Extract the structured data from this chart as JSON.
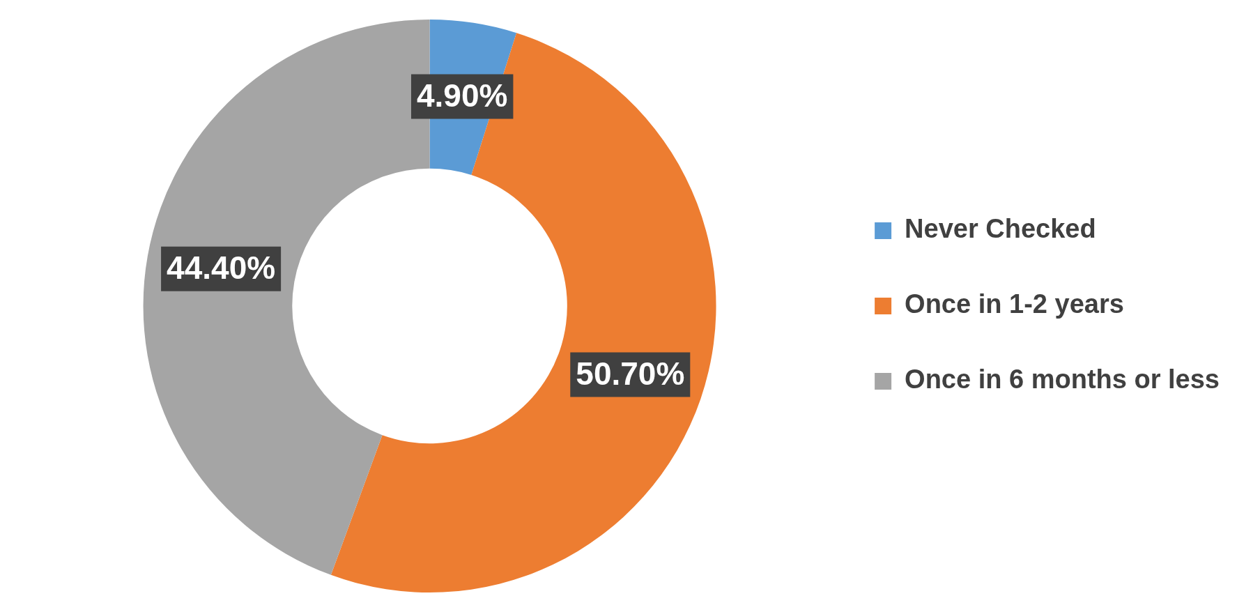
{
  "chart_data": {
    "type": "donut",
    "categories": [
      "Never Checked",
      "Once in 1-2 years",
      "Once in 6 months or less"
    ],
    "values": [
      4.9,
      50.7,
      44.4
    ],
    "colors": [
      "#5b9bd5",
      "#ed7d31",
      "#a5a5a5"
    ],
    "value_labels": [
      "4.90%",
      "50.70%",
      "44.40%"
    ],
    "legend": "right"
  }
}
